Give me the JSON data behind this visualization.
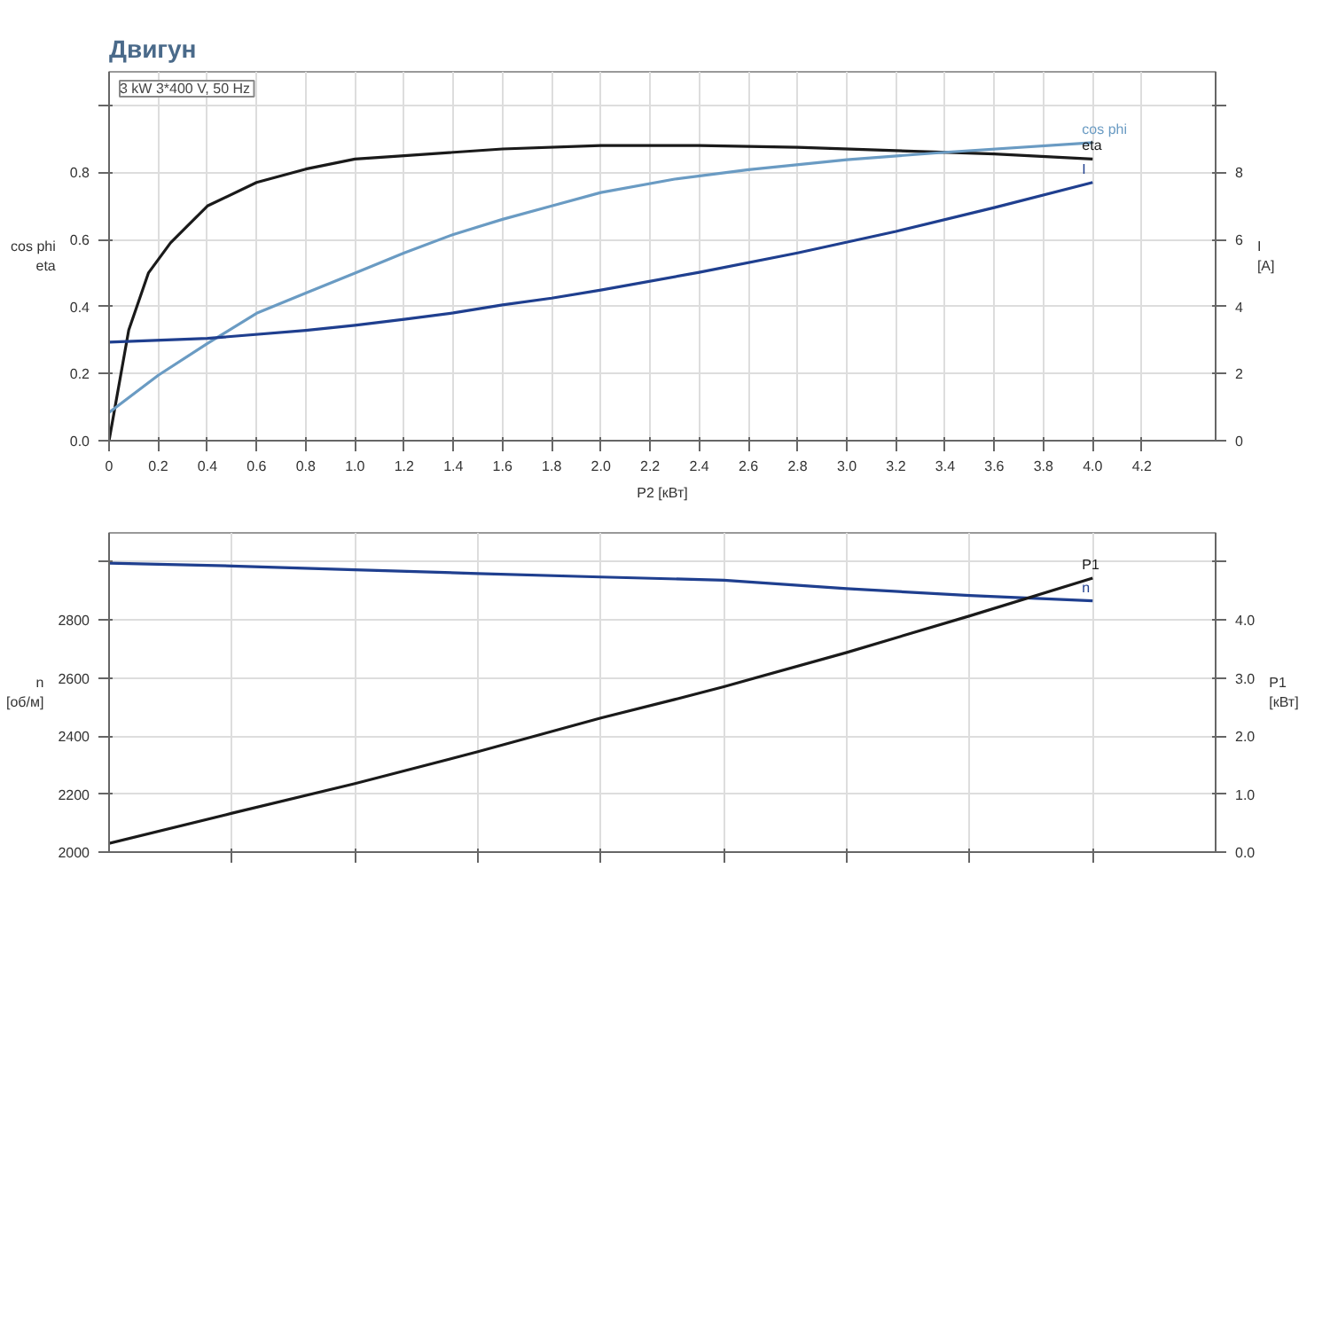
{
  "chart_data": [
    {
      "type": "line",
      "title": "Двигун",
      "ylabel": "cos phi\neta",
      "y2label": "I\n[A]",
      "xlabel": "P2 [кВт]",
      "annotations": [
        "3 kW  3*400 V, 50 Hz"
      ],
      "xlim": [
        0,
        4.5
      ],
      "xticks": [
        {
          "value": 0,
          "label": "0"
        },
        0.2,
        0.4,
        0.6,
        0.8,
        {
          "value": 1.0,
          "label": "1.0"
        },
        1.2,
        1.4,
        1.6,
        1.8,
        {
          "value": 2.0,
          "label": "2.0"
        },
        2.2,
        2.4,
        2.6,
        2.8,
        {
          "value": 3.0,
          "label": "3.0"
        },
        3.2,
        3.4,
        3.6,
        3.8,
        {
          "value": 4.0,
          "label": "4.0"
        },
        4.2
      ],
      "ylim": [
        0,
        1.1
      ],
      "yticks": [
        {
          "value": 0,
          "label": "0.0"
        },
        0.2,
        0.4,
        0.6,
        0.8,
        {
          "value": 1.0,
          "label": null
        }
      ],
      "y2lim": [
        0,
        11
      ],
      "y2ticks": [
        0,
        2,
        4,
        6,
        8,
        {
          "value": 10,
          "label": null
        }
      ],
      "grid": true,
      "line_style": "solid",
      "marker": "none",
      "series": [
        {
          "name": "eta",
          "color": "#1a1a1a",
          "x": [
            0,
            0.08,
            0.16,
            0.25,
            0.4,
            0.6,
            0.8,
            1.0,
            1.2,
            1.6,
            2.0,
            2.4,
            2.8,
            3.2,
            3.6,
            4.0
          ],
          "values": [
            0,
            0.33,
            0.5,
            0.59,
            0.7,
            0.77,
            0.81,
            0.84,
            0.85,
            0.87,
            0.88,
            0.88,
            0.875,
            0.865,
            0.855,
            0.84
          ]
        },
        {
          "name": "cos phi",
          "color": "#6a9bc3",
          "x": [
            0,
            0.2,
            0.4,
            0.6,
            0.8,
            1.0,
            1.2,
            1.4,
            1.6,
            1.8,
            2.0,
            2.3,
            2.6,
            3.0,
            3.4,
            4.0
          ],
          "values": [
            0.084,
            0.195,
            0.29,
            0.38,
            0.44,
            0.5,
            0.56,
            0.615,
            0.66,
            0.7,
            0.74,
            0.78,
            0.808,
            0.838,
            0.86,
            0.889
          ]
        },
        {
          "name": "I",
          "color": "#1f3f8f",
          "axis": "y2",
          "x": [
            0,
            0.4,
            0.8,
            1.0,
            1.2,
            1.4,
            1.6,
            1.8,
            2.0,
            2.4,
            2.8,
            3.2,
            3.6,
            4.0
          ],
          "values": [
            2.94,
            3.05,
            3.29,
            3.44,
            3.62,
            3.81,
            4.05,
            4.25,
            4.49,
            5.02,
            5.6,
            6.24,
            6.95,
            7.7
          ]
        }
      ]
    },
    {
      "type": "line",
      "ylabel": "n\n[об/м]",
      "y2label": "P1\n[кВт]",
      "xlim": [
        0,
        4.5
      ],
      "xticks": [
        {
          "value": 0.5,
          "label": null
        },
        {
          "value": 1.0,
          "label": null
        },
        {
          "value": 1.5,
          "label": null
        },
        {
          "value": 2.0,
          "label": null
        },
        {
          "value": 2.5,
          "label": null
        },
        {
          "value": 3.0,
          "label": null
        },
        {
          "value": 3.5,
          "label": null
        },
        {
          "value": 4.0,
          "label": null
        }
      ],
      "ylim": [
        2000,
        3100
      ],
      "yticks": [
        2000,
        2200,
        2400,
        2600,
        2800,
        {
          "value": 3000,
          "label": null
        }
      ],
      "y2lim": [
        0,
        5.5
      ],
      "y2ticks": [
        {
          "value": 0,
          "label": "0.0"
        },
        {
          "value": 1,
          "label": "1.0"
        },
        {
          "value": 2,
          "label": "2.0"
        },
        {
          "value": 3,
          "label": "3.0"
        },
        {
          "value": 4,
          "label": "4.0"
        },
        {
          "value": 5,
          "label": null
        }
      ],
      "tick_labels": "y",
      "grid": true,
      "line_style": "solid",
      "marker": "none",
      "series": [
        {
          "name": "n",
          "color": "#1f3f8f",
          "x": [
            0,
            0.5,
            1.0,
            1.5,
            2.0,
            2.5,
            3.0,
            3.5,
            4.0
          ],
          "values": [
            2996,
            2986,
            2973,
            2960,
            2948,
            2937,
            2908,
            2884,
            2866
          ]
        },
        {
          "name": "P1",
          "color": "#1a1a1a",
          "axis": "y2",
          "x": [
            0,
            0.5,
            1.0,
            1.5,
            2.0,
            2.3,
            2.5,
            3.0,
            3.5,
            4.0
          ],
          "values": [
            0.15,
            0.67,
            1.18,
            1.73,
            2.31,
            2.63,
            2.85,
            3.44,
            4.07,
            4.72
          ]
        }
      ]
    }
  ]
}
